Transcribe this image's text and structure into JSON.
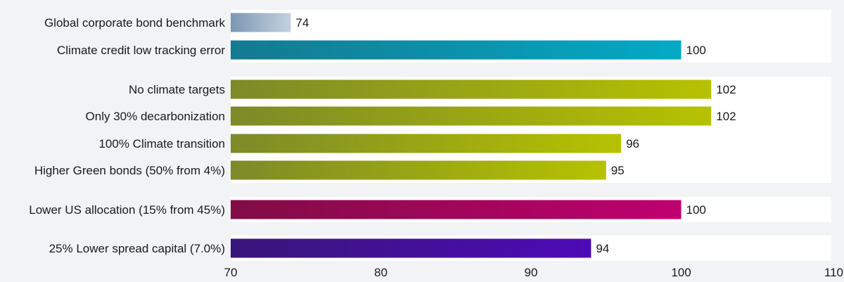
{
  "chart_data": {
    "type": "bar",
    "orientation": "horizontal",
    "categories": [
      "Global corporate bond benchmark",
      "Climate credit low tracking error",
      "No climate targets",
      "Only 30% decarbonization",
      "100% Climate transition",
      "Higher Green bonds (50% from 4%)",
      "Lower US allocation (15% from 45%)",
      "25% Lower spread capital (7.0%)"
    ],
    "values": [
      74,
      100,
      102,
      102,
      96,
      95,
      100,
      94
    ],
    "value_labels": [
      "74",
      "100",
      "102",
      "102",
      "96",
      "95",
      "100",
      "94"
    ],
    "groups": [
      0,
      0,
      1,
      1,
      1,
      1,
      2,
      3
    ],
    "xlim": [
      70,
      110
    ],
    "xticks": [
      "70",
      "80",
      "90",
      "100",
      "110"
    ],
    "xlabel": "",
    "ylabel": "",
    "title": "",
    "grid": false,
    "legend": "none",
    "bar_colors": [
      [
        "#7b98b3",
        "#c4d2df"
      ],
      [
        "#147a90",
        "#03a9c6"
      ],
      [
        "#7d8a28",
        "#b6c200"
      ],
      [
        "#7d8a28",
        "#b6c200"
      ],
      [
        "#7d8a28",
        "#b6c200"
      ],
      [
        "#7d8a28",
        "#b6c200"
      ],
      [
        "#820c45",
        "#bf0070"
      ],
      [
        "#38167a",
        "#4e0ab6"
      ]
    ],
    "text_color": "#1a1a1a",
    "panel_color": "#ffffff",
    "background_color": "#f1f3f5"
  }
}
